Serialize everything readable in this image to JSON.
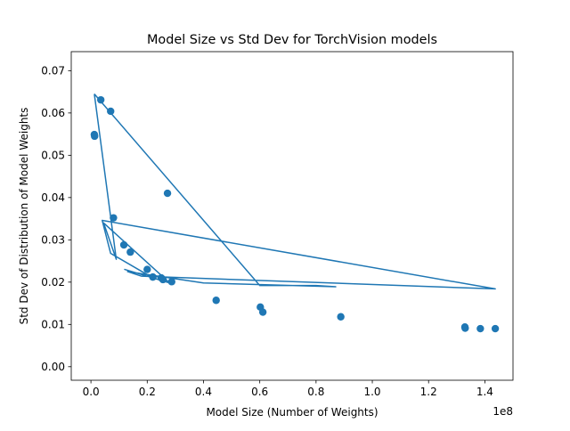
{
  "chart_data": {
    "type": "scatter",
    "title": "Model Size vs Std Dev for TorchVision models",
    "xlabel": "Model Size (Number of Weights)",
    "ylabel": "Std Dev of Distribution of Model Weights",
    "x_offset_label": "1e8",
    "xlim": [
      -7000000.0,
      150000000.0
    ],
    "ylim": [
      -0.0032,
      0.0745
    ],
    "x_ticks": [
      0,
      20000000.0,
      40000000.0,
      60000000.0,
      80000000.0,
      100000000.0,
      120000000.0,
      140000000.0
    ],
    "x_tick_labels": [
      "0.0",
      "0.2",
      "0.4",
      "0.6",
      "0.8",
      "1.0",
      "1.2",
      "1.4"
    ],
    "y_ticks": [
      0,
      0.01,
      0.02,
      0.03,
      0.04,
      0.05,
      0.06,
      0.07
    ],
    "y_tick_labels": [
      "0.00",
      "0.01",
      "0.02",
      "0.03",
      "0.04",
      "0.05",
      "0.06",
      "0.07"
    ],
    "grid": false,
    "color": "#1f77b4",
    "series": [
      {
        "type": "scatter",
        "x": [
          1200000.0,
          1300000.0,
          3500000.0,
          7000000.0,
          8000000.0,
          11700000.0,
          14000000.0,
          20000000.0,
          22000000.0,
          25000000.0,
          25600000.0,
          27200000.0,
          28700000.0,
          44500000.0,
          60200000.0,
          61100000.0,
          88800000.0,
          132900000.0,
          133000000.0,
          138400000.0,
          143700000.0
        ],
        "y": [
          0.0549,
          0.0545,
          0.0631,
          0.0604,
          0.0352,
          0.0288,
          0.0271,
          0.023,
          0.0212,
          0.021,
          0.0206,
          0.041,
          0.0201,
          0.0157,
          0.0141,
          0.0129,
          0.0118,
          0.0094,
          0.0091,
          0.009,
          0.009
        ]
      },
      {
        "type": "line",
        "x": [
          1200000.0,
          60000000.0,
          80000000.0,
          87000000.0,
          40000000.0,
          13000000.0,
          18000000.0,
          143700000.0,
          4000000.0,
          7000000.0,
          22000000.0,
          12000000.0,
          28000000.0,
          4500000.0,
          9000000.0,
          1200000.0
        ],
        "y": [
          0.0645,
          0.0192,
          0.0192,
          0.0189,
          0.0198,
          0.0225,
          0.0214,
          0.0184,
          0.0346,
          0.0268,
          0.021,
          0.023,
          0.0198,
          0.034,
          0.0254,
          0.0645
        ]
      }
    ]
  }
}
